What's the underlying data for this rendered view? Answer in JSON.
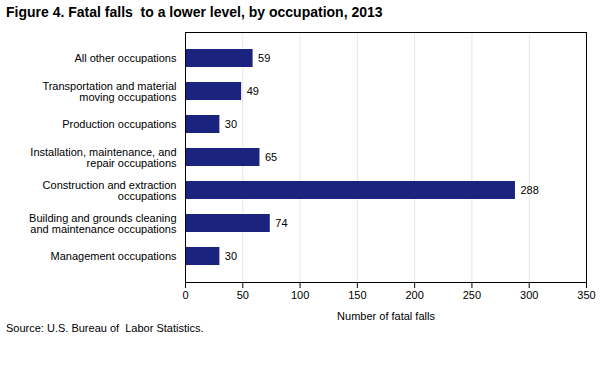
{
  "chart_data": {
    "type": "bar",
    "orientation": "horizontal",
    "title": "Figure 4. Fatal falls  to a lower level, by occupation, 2013",
    "categories": [
      "Management occupations",
      "Building and grounds cleaning\nand maintenance occupations",
      "Construction and extraction\noccupations",
      "Installation, maintenance, and\nrepair occupations",
      "Production occupations",
      "Transportation and material\nmoving occupations",
      "All other occupations"
    ],
    "values": [
      30,
      74,
      288,
      65,
      30,
      49,
      59
    ],
    "color": "#1a237e",
    "xlabel": "Number of fatal falls",
    "xlim": [
      0,
      350
    ],
    "xticks": [
      0,
      50,
      100,
      150,
      200,
      250,
      300,
      350
    ],
    "grid": true,
    "data_labels": true,
    "source": "Source: U.S. Bureau of  Labor Statistics."
  }
}
